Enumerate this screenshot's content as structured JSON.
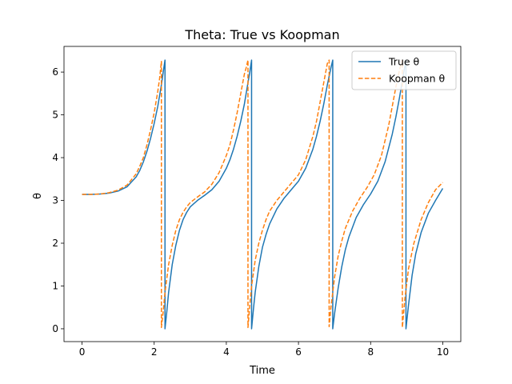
{
  "chart_data": {
    "type": "line",
    "title": "Theta: True vs Koopman",
    "xlabel": "Time",
    "ylabel": "θ",
    "xlim": [
      -0.5,
      10.5
    ],
    "ylim": [
      -0.3,
      6.6
    ],
    "xticks": [
      0,
      2,
      4,
      6,
      8,
      10
    ],
    "yticks": [
      0,
      1,
      2,
      3,
      4,
      5,
      6
    ],
    "grid": false,
    "legend_position": "upper right",
    "series": [
      {
        "name": "True θ",
        "color": "#1f77b4",
        "style": "solid",
        "x": [
          0,
          0.25,
          0.5,
          0.75,
          1.0,
          1.25,
          1.5,
          1.6,
          1.7,
          1.8,
          1.9,
          2.0,
          2.1,
          2.2,
          2.25,
          2.3,
          2.3,
          2.35,
          2.4,
          2.5,
          2.6,
          2.7,
          2.8,
          2.9,
          3.0,
          3.2,
          3.4,
          3.6,
          3.8,
          4.0,
          4.1,
          4.2,
          4.3,
          4.4,
          4.5,
          4.6,
          4.65,
          4.7,
          4.7,
          4.75,
          4.8,
          4.9,
          5.0,
          5.1,
          5.2,
          5.4,
          5.6,
          5.8,
          6.0,
          6.2,
          6.4,
          6.5,
          6.6,
          6.7,
          6.8,
          6.9,
          6.95,
          6.95,
          7.0,
          7.1,
          7.2,
          7.3,
          7.4,
          7.6,
          7.8,
          8.0,
          8.2,
          8.4,
          8.6,
          8.7,
          8.8,
          8.9,
          8.98,
          8.98,
          9.05,
          9.15,
          9.25,
          9.4,
          9.6,
          9.8,
          10.0
        ],
        "y": [
          3.14,
          3.14,
          3.15,
          3.17,
          3.22,
          3.32,
          3.55,
          3.7,
          3.9,
          4.15,
          4.45,
          4.8,
          5.2,
          5.7,
          6.0,
          6.28,
          0.0,
          0.4,
          0.85,
          1.5,
          1.95,
          2.3,
          2.55,
          2.72,
          2.85,
          3.0,
          3.12,
          3.25,
          3.45,
          3.75,
          3.95,
          4.2,
          4.5,
          4.85,
          5.25,
          5.75,
          6.0,
          6.28,
          0.0,
          0.45,
          0.85,
          1.45,
          1.9,
          2.2,
          2.45,
          2.8,
          3.05,
          3.25,
          3.45,
          3.75,
          4.2,
          4.5,
          4.85,
          5.25,
          5.7,
          6.1,
          6.28,
          0.0,
          0.35,
          0.95,
          1.45,
          1.85,
          2.15,
          2.6,
          2.9,
          3.15,
          3.45,
          3.9,
          4.55,
          4.95,
          5.4,
          5.9,
          6.28,
          0.0,
          0.55,
          1.25,
          1.75,
          2.25,
          2.7,
          3.0,
          3.28
        ]
      },
      {
        "name": "Koopman θ",
        "color": "#ff7f0e",
        "style": "dashed",
        "x": [
          0,
          0.25,
          0.5,
          0.75,
          1.0,
          1.25,
          1.5,
          1.6,
          1.7,
          1.8,
          1.9,
          2.0,
          2.1,
          2.15,
          2.2,
          2.2,
          2.25,
          2.3,
          2.4,
          2.5,
          2.6,
          2.7,
          2.8,
          2.9,
          3.0,
          3.2,
          3.4,
          3.6,
          3.8,
          4.0,
          4.1,
          4.2,
          4.3,
          4.4,
          4.5,
          4.55,
          4.6,
          4.6,
          4.65,
          4.7,
          4.8,
          4.9,
          5.0,
          5.1,
          5.2,
          5.4,
          5.6,
          5.8,
          6.0,
          6.2,
          6.4,
          6.5,
          6.6,
          6.7,
          6.8,
          6.85,
          6.85,
          6.9,
          7.0,
          7.1,
          7.2,
          7.3,
          7.5,
          7.7,
          7.9,
          8.1,
          8.3,
          8.5,
          8.6,
          8.7,
          8.8,
          8.88,
          8.88,
          8.95,
          9.05,
          9.2,
          9.4,
          9.6,
          9.8,
          10.0
        ],
        "y": [
          3.14,
          3.14,
          3.15,
          3.18,
          3.24,
          3.36,
          3.62,
          3.8,
          4.0,
          4.3,
          4.65,
          5.05,
          5.55,
          5.85,
          6.25,
          0.03,
          0.4,
          0.85,
          1.5,
          1.95,
          2.3,
          2.55,
          2.72,
          2.85,
          2.95,
          3.08,
          3.2,
          3.38,
          3.65,
          4.05,
          4.3,
          4.65,
          5.05,
          5.5,
          5.95,
          6.1,
          6.28,
          0.03,
          0.55,
          1.0,
          1.6,
          2.0,
          2.3,
          2.55,
          2.75,
          3.0,
          3.2,
          3.4,
          3.6,
          3.95,
          4.5,
          4.85,
          5.3,
          5.75,
          6.2,
          6.28,
          0.05,
          0.5,
          1.2,
          1.7,
          2.05,
          2.35,
          2.75,
          3.05,
          3.3,
          3.6,
          4.05,
          4.75,
          5.2,
          5.65,
          6.05,
          6.28,
          0.03,
          0.7,
          1.4,
          2.0,
          2.55,
          2.95,
          3.25,
          3.42
        ]
      }
    ]
  }
}
